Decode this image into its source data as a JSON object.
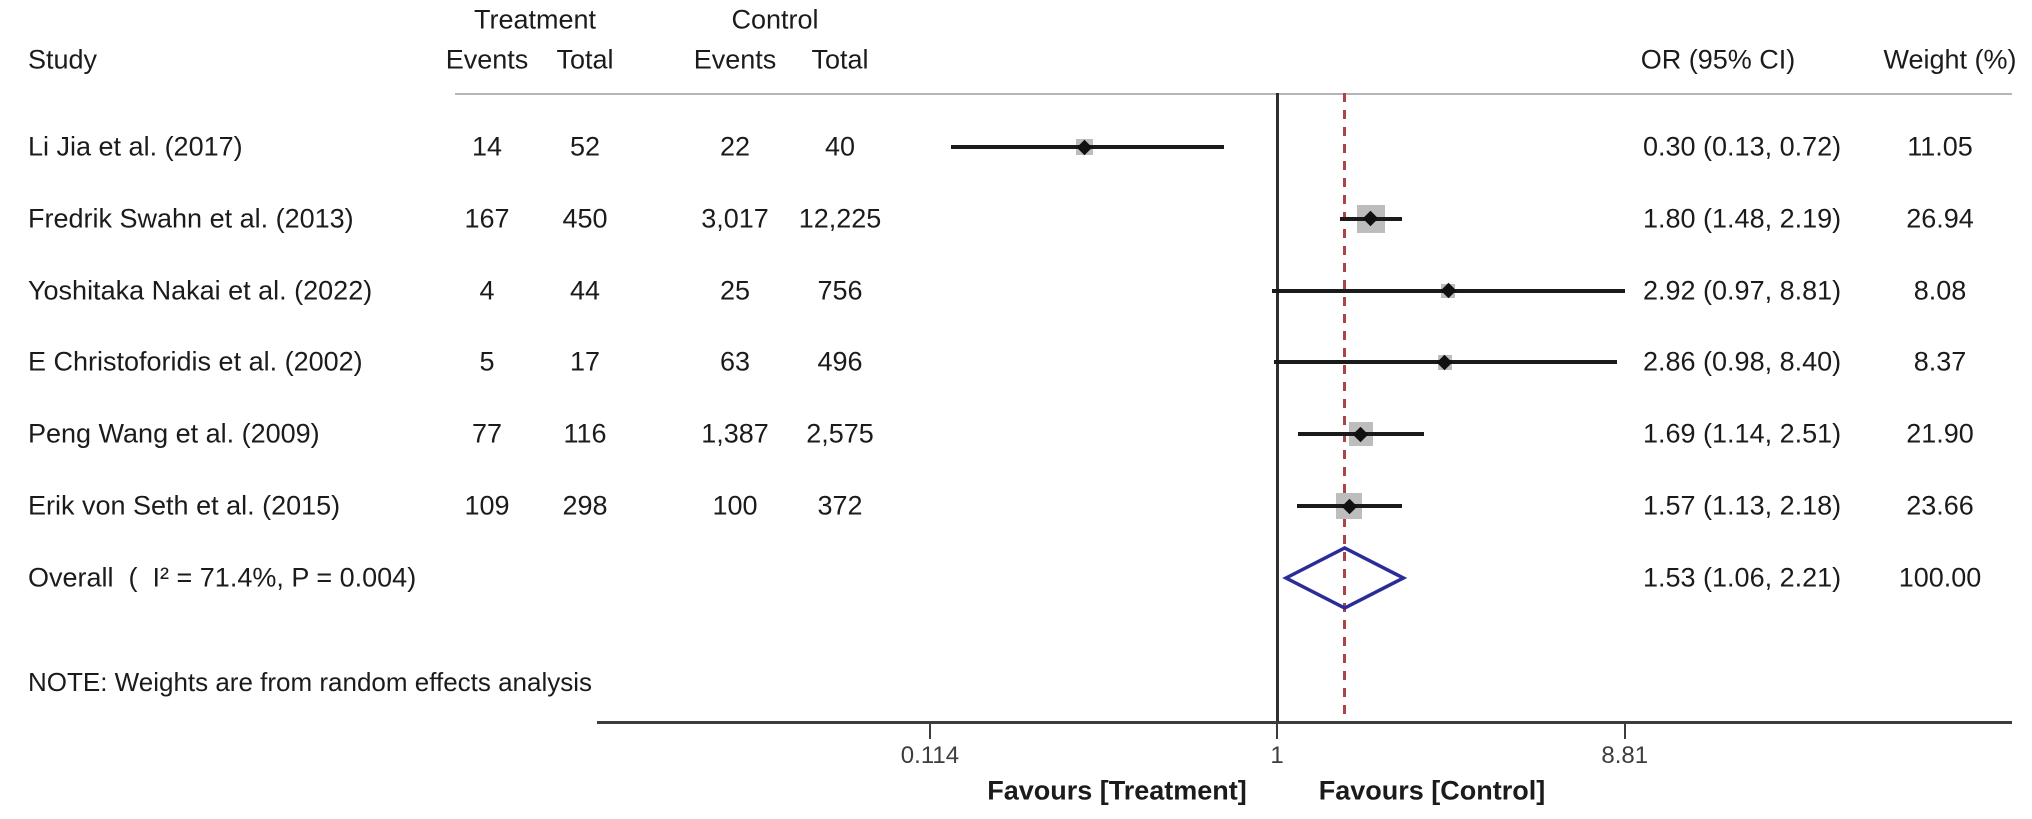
{
  "header": {
    "treatment_group": "Treatment",
    "control_group": "Control",
    "study_col": "Study",
    "treatment_events_col": "Events",
    "treatment_total_col": "Total",
    "control_events_col": "Events",
    "control_total_col": "Total",
    "or_ci_col": "OR (95% CI)",
    "weight_col": "Weight (%)"
  },
  "note": "NOTE: Weights are from random effects analysis",
  "chart_data": {
    "type": "forest",
    "x_scale": "log",
    "xlim_approx": [
      0.014,
      100
    ],
    "no_effect_line": 1,
    "axis_ticks": [
      {
        "value": 0.114,
        "label": "0.114"
      },
      {
        "value": 1,
        "label": "1"
      },
      {
        "value": 8.81,
        "label": "8.81"
      }
    ],
    "favours_left": "Favours [Treatment]",
    "favours_right": "Favours [Control]",
    "studies": [
      {
        "study": "Li Jia et al. (2017)",
        "treatment_events": "14",
        "treatment_total": "52",
        "control_events": "22",
        "control_total": "40",
        "or": 0.3,
        "ci_low": 0.13,
        "ci_high": 0.72,
        "or_ci_text": "0.30 (0.13, 0.72)",
        "weight": 11.05,
        "weight_text": "11.05"
      },
      {
        "study": "Fredrik Swahn et al. (2013)",
        "treatment_events": "167",
        "treatment_total": "450",
        "control_events": "3,017",
        "control_total": "12,225",
        "or": 1.8,
        "ci_low": 1.48,
        "ci_high": 2.19,
        "or_ci_text": "1.80 (1.48, 2.19)",
        "weight": 26.94,
        "weight_text": "26.94"
      },
      {
        "study": "Yoshitaka Nakai et al. (2022)",
        "treatment_events": "4",
        "treatment_total": "44",
        "control_events": "25",
        "control_total": "756",
        "or": 2.92,
        "ci_low": 0.97,
        "ci_high": 8.81,
        "or_ci_text": "2.92 (0.97, 8.81)",
        "weight": 8.08,
        "weight_text": "8.08"
      },
      {
        "study": "E Christoforidis et al. (2002)",
        "treatment_events": "5",
        "treatment_total": "17",
        "control_events": "63",
        "control_total": "496",
        "or": 2.86,
        "ci_low": 0.98,
        "ci_high": 8.4,
        "or_ci_text": "2.86 (0.98, 8.40)",
        "weight": 8.37,
        "weight_text": "8.37"
      },
      {
        "study": "Peng Wang et al. (2009)",
        "treatment_events": "77",
        "treatment_total": "116",
        "control_events": "1,387",
        "control_total": "2,575",
        "or": 1.69,
        "ci_low": 1.14,
        "ci_high": 2.51,
        "or_ci_text": "1.69 (1.14, 2.51)",
        "weight": 21.9,
        "weight_text": "21.90"
      },
      {
        "study": "Erik von Seth et al. (2015)",
        "treatment_events": "109",
        "treatment_total": "298",
        "control_events": "100",
        "control_total": "372",
        "or": 1.57,
        "ci_low": 1.13,
        "ci_high": 2.18,
        "or_ci_text": "1.57 (1.13, 2.18)",
        "weight": 23.66,
        "weight_text": "23.66"
      }
    ],
    "overall": {
      "label": "Overall  (  I² = 71.4%, P = 0.004)",
      "or": 1.53,
      "ci_low": 1.06,
      "ci_high": 2.21,
      "or_ci_text": "1.53 (1.06, 2.21)",
      "weight_text": "100.00"
    }
  },
  "colors": {
    "text": "#1b1b1b",
    "ci_line": "#1a1a1a",
    "weight_square": "#bdbdbd",
    "point_marker": "#111111",
    "diamond_outline": "#2c2c99",
    "overall_dashed_line": "#a94545",
    "axis": "#3c3c3c",
    "header_rule": "#b5b5b5"
  }
}
